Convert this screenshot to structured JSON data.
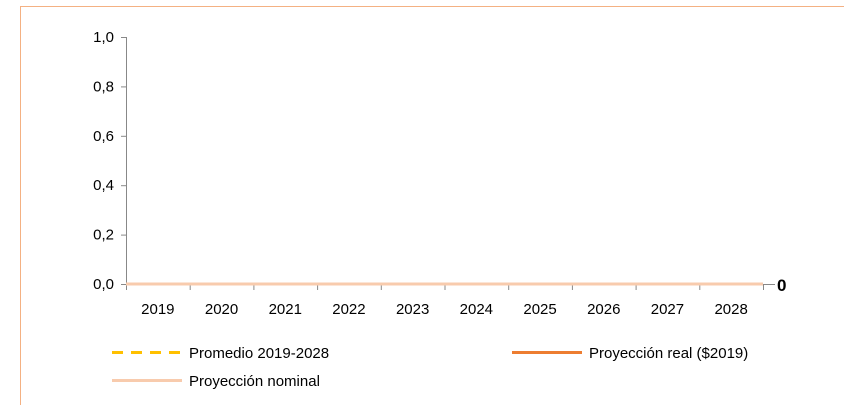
{
  "chart_data": {
    "type": "line",
    "categories": [
      "2019",
      "2020",
      "2021",
      "2022",
      "2023",
      "2024",
      "2025",
      "2026",
      "2027",
      "2028"
    ],
    "ylim": [
      0,
      1
    ],
    "yticks": [
      "0,0",
      "0,2",
      "0,4",
      "0,6",
      "0,8",
      "1,0"
    ],
    "grid": false,
    "series": [
      {
        "name": "Promedio 2019-2028",
        "values": [
          0,
          0,
          0,
          0,
          0,
          0,
          0,
          0,
          0,
          0
        ],
        "color": "#FFC000",
        "dash": "dashed"
      },
      {
        "name": "Proyección real ($2019)",
        "values": [
          0,
          0,
          0,
          0,
          0,
          0,
          0,
          0,
          0,
          0
        ],
        "color": "#ED7D31",
        "dash": "solid"
      },
      {
        "name": "Proyección nominal",
        "values": [
          0,
          0,
          0,
          0,
          0,
          0,
          0,
          0,
          0,
          0
        ],
        "color": "#F8CBAD",
        "dash": "solid"
      }
    ],
    "end_label": "0",
    "legend_position": "bottom",
    "frame_color": "#F4B183"
  }
}
